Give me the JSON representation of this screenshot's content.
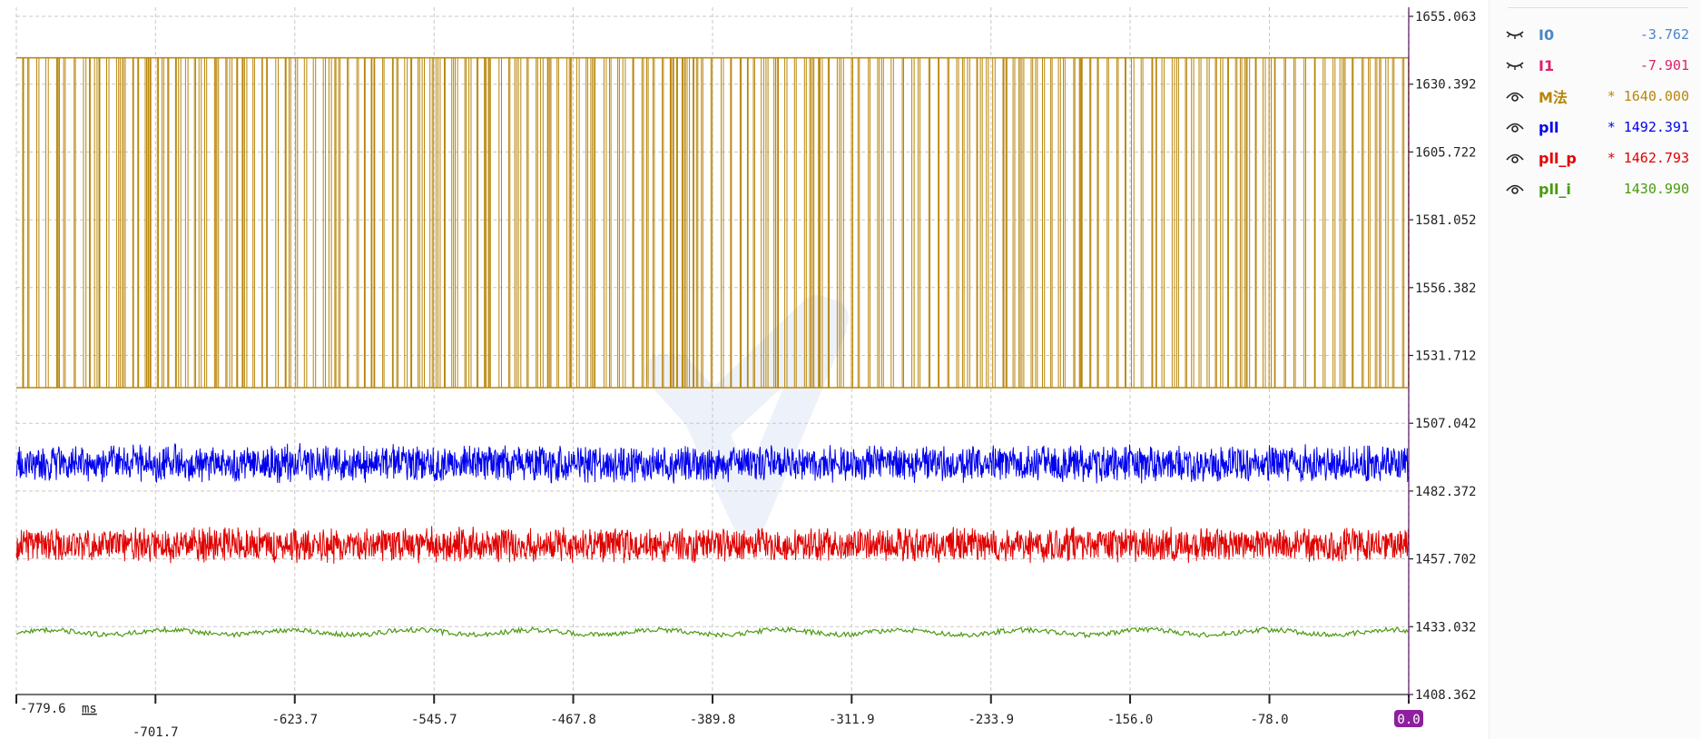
{
  "chart_data": {
    "type": "line",
    "x_unit": "ms",
    "xlim": [
      -779.6,
      0.0
    ],
    "ylim": [
      1408.362,
      1655.063
    ],
    "x_tick_labels": [
      "-779.6",
      "-701.7",
      "-623.7",
      "-545.7",
      "-467.8",
      "-389.8",
      "-311.9",
      "-233.9",
      "-156.0",
      "-78.0",
      "0.0"
    ],
    "x_tick_values": [
      -779.6,
      -701.7,
      -623.7,
      -545.7,
      -467.8,
      -389.8,
      -311.9,
      -233.9,
      -156.0,
      -78.0,
      0.0
    ],
    "y_tick_labels": [
      "1655.063",
      "1630.392",
      "1605.722",
      "1581.052",
      "1556.382",
      "1531.712",
      "1507.042",
      "1482.372",
      "1457.702",
      "1433.032",
      "1408.362"
    ],
    "y_tick_values": [
      1655.063,
      1630.392,
      1605.722,
      1581.052,
      1556.382,
      1531.712,
      1507.042,
      1482.372,
      1457.702,
      1433.032,
      1408.362
    ],
    "cursor_label": "0.0",
    "grid": true,
    "series": [
      {
        "name": "M法",
        "style": "square-wave",
        "high": 1640.0,
        "low": 1520.0,
        "color": "#b8860b"
      },
      {
        "name": "pll",
        "style": "noise",
        "center": 1492.4,
        "amplitude": 7.5,
        "color": "#0000ee"
      },
      {
        "name": "pll_p",
        "style": "noise",
        "center": 1462.8,
        "amplitude": 7.0,
        "color": "#e00000"
      },
      {
        "name": "pll_i",
        "style": "wave",
        "center": 1431.0,
        "amplitude": 1.5,
        "color": "#4a9a10"
      }
    ]
  },
  "legend": {
    "items": [
      {
        "name": "I0",
        "value": "-3.762",
        "color": "#4a86c8",
        "visible": false,
        "marker": ""
      },
      {
        "name": "I1",
        "value": "-7.901",
        "color": "#e0206a",
        "visible": false,
        "marker": ""
      },
      {
        "name": "M法",
        "value": "1640.000",
        "color": "#b8860b",
        "visible": true,
        "marker": "*"
      },
      {
        "name": "pll",
        "value": "1492.391",
        "color": "#0000ee",
        "visible": true,
        "marker": "*"
      },
      {
        "name": "pll_p",
        "value": "1462.793",
        "color": "#e00000",
        "visible": true,
        "marker": "*"
      },
      {
        "name": "pll_i",
        "value": "1430.990",
        "color": "#4a9a10",
        "visible": true,
        "marker": ""
      }
    ]
  },
  "colors": {
    "grid": "#c8c8c8",
    "cursor": "#8e1f9e",
    "watermark": "#e8eef8"
  }
}
